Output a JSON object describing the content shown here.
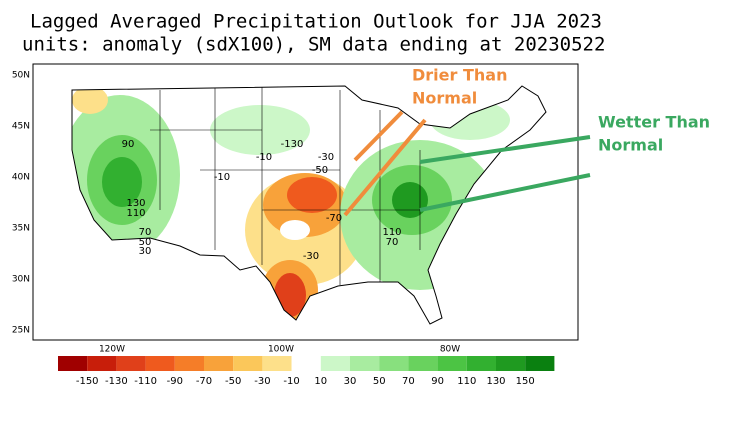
{
  "header": {
    "title": "Lagged Averaged Precipitation Outlook for JJA 2023",
    "subtitle": "units: anomaly (sdX100), SM data ending at 20230522"
  },
  "map": {
    "lat_labels": [
      "50N",
      "45N",
      "40N",
      "35N",
      "30N",
      "25N"
    ],
    "lon_labels": [
      "120W",
      "100W",
      "80W"
    ],
    "contour_labels": [
      "90",
      "130",
      "110",
      "70",
      "50",
      "30",
      "-10",
      "-10",
      "-130",
      "-30",
      "-50",
      "-70",
      "-30",
      "110",
      "70"
    ]
  },
  "colorbar": {
    "labels": [
      "-150",
      "-130",
      "-110",
      "-90",
      "-70",
      "-50",
      "-30",
      "-10",
      "10",
      "30",
      "50",
      "70",
      "90",
      "110",
      "130",
      "150"
    ],
    "colors": [
      "#a00000",
      "#c81e0a",
      "#e0401a",
      "#ef5a1e",
      "#f57d28",
      "#f8a23a",
      "#fbc75a",
      "#fde08a",
      "#ffffff",
      "#ccf7c8",
      "#a8eca0",
      "#88e07e",
      "#69d25e",
      "#4cc444",
      "#32b030",
      "#1f9a20",
      "#0a8010"
    ]
  },
  "annotations": {
    "drier": [
      "Drier Than",
      "Normal"
    ],
    "wetter": [
      "Wetter Than",
      "Normal"
    ]
  }
}
